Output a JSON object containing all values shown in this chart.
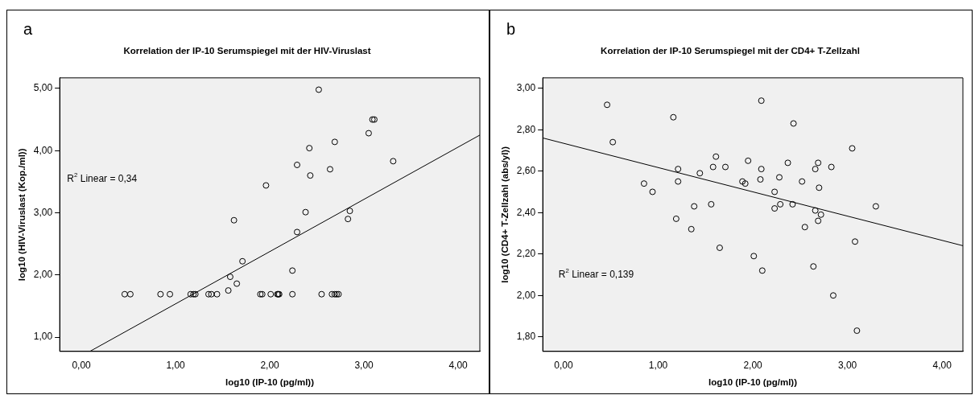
{
  "chart_data": [
    {
      "type": "scatter",
      "title": "Korrelation der IP-10 Serumspiegel mit der HIV-Viruslast",
      "xlabel": "log10 (IP-10 (pg/ml))",
      "ylabel": "log10 (HIV-Viruslast (Kop./ml))",
      "annotations": [
        "a",
        "R$^{2}$ Linear = 0,34"
      ],
      "xlim": [
        -0.23,
        4.23
      ],
      "ylim": [
        0.77,
        5.17
      ],
      "xticks": [
        {
          "value": 0,
          "label": "0,00"
        },
        {
          "value": 1,
          "label": "1,00"
        },
        {
          "value": 2,
          "label": "2,00"
        },
        {
          "value": 3,
          "label": "3,00"
        },
        {
          "value": 4,
          "label": "4,00"
        }
      ],
      "yticks": [
        {
          "value": 1,
          "label": "1,00"
        },
        {
          "value": 2,
          "label": "2,00"
        },
        {
          "value": 3,
          "label": "3,00"
        },
        {
          "value": 4,
          "label": "4,00"
        },
        {
          "value": 5,
          "label": "5,00"
        }
      ],
      "grid": false,
      "legend": false,
      "marker": "circle",
      "series": [
        {
          "color": "#000000",
          "x": [
            0.46,
            0.52,
            0.84,
            0.94,
            1.16,
            1.19,
            1.21,
            1.35,
            1.38,
            1.44,
            1.9,
            1.92,
            2.01,
            2.08,
            2.09,
            2.1,
            2.24,
            2.55,
            2.66,
            2.69,
            2.71,
            2.73,
            2.52,
            3.09,
            3.11,
            3.05,
            2.69,
            2.42,
            3.31,
            2.29,
            2.64,
            2.43,
            1.96,
            2.38,
            2.85,
            2.83,
            1.62,
            2.29,
            1.71,
            2.24,
            1.58,
            1.65,
            1.56
          ],
          "values": [
            1.69,
            1.69,
            1.69,
            1.69,
            1.69,
            1.69,
            1.69,
            1.69,
            1.69,
            1.69,
            1.69,
            1.69,
            1.69,
            1.69,
            1.69,
            1.69,
            1.69,
            1.69,
            1.69,
            1.69,
            1.69,
            1.69,
            4.98,
            4.5,
            4.5,
            4.28,
            4.14,
            4.04,
            3.83,
            3.77,
            3.7,
            3.6,
            3.44,
            3.01,
            3.03,
            2.9,
            2.88,
            2.69,
            2.22,
            2.07,
            1.97,
            1.86,
            1.75
          ]
        },
        {
          "type": "line",
          "color": "#000000",
          "marker": "none",
          "line_style": "solid",
          "x": [
            0.09,
            4.23
          ],
          "values": [
            0.77,
            4.25
          ]
        }
      ]
    },
    {
      "type": "scatter",
      "title": "Korrelation der IP-10 Serumspiegel mit der CD4+ T-Zellzahl",
      "xlabel": "log10 (IP-10 (pg/ml))",
      "ylabel": "log10 (CD4+ T-Zellzahl (abs/yl))",
      "annotations": [
        "b",
        "R$^{2}$ Linear = 0,139"
      ],
      "xlim": [
        -0.22,
        4.22
      ],
      "ylim": [
        1.73,
        3.05
      ],
      "xticks": [
        {
          "value": 0,
          "label": "0,00"
        },
        {
          "value": 1,
          "label": "1,00"
        },
        {
          "value": 2,
          "label": "2,00"
        },
        {
          "value": 3,
          "label": "3,00"
        },
        {
          "value": 4,
          "label": "4,00"
        }
      ],
      "yticks": [
        {
          "value": 1.8,
          "label": "1,80"
        },
        {
          "value": 2,
          "label": "2,00"
        },
        {
          "value": 2.2,
          "label": "2,20"
        },
        {
          "value": 2.4,
          "label": "2,40"
        },
        {
          "value": 2.6,
          "label": "2,60"
        },
        {
          "value": 2.8,
          "label": "2,80"
        },
        {
          "value": 3,
          "label": "3,00"
        }
      ],
      "grid": false,
      "legend": false,
      "marker": "circle",
      "series": [
        {
          "color": "#000000",
          "x": [
            0.46,
            0.52,
            1.16,
            2.09,
            2.43,
            3.05,
            1.61,
            1.95,
            2.37,
            2.69,
            1.21,
            1.58,
            1.71,
            2.09,
            2.66,
            2.83,
            1.44,
            2.08,
            2.28,
            1.89,
            1.92,
            2.52,
            1.21,
            0.85,
            0.94,
            2.7,
            2.23,
            1.56,
            2.29,
            2.42,
            1.38,
            2.23,
            3.3,
            2.66,
            2.72,
            2.69,
            2.55,
            1.19,
            1.35,
            1.65,
            3.08,
            2.01,
            2.1,
            2.64,
            2.85,
            3.1
          ],
          "values": [
            2.92,
            2.74,
            2.86,
            2.94,
            2.83,
            2.71,
            2.67,
            2.65,
            2.64,
            2.64,
            2.61,
            2.62,
            2.62,
            2.61,
            2.61,
            2.62,
            2.59,
            2.56,
            2.57,
            2.55,
            2.54,
            2.55,
            2.55,
            2.54,
            2.5,
            2.52,
            2.5,
            2.44,
            2.44,
            2.44,
            2.43,
            2.42,
            2.43,
            2.41,
            2.39,
            2.36,
            2.33,
            2.37,
            2.32,
            2.23,
            2.26,
            2.19,
            2.12,
            2.14,
            2,
            1.83
          ]
        },
        {
          "type": "line",
          "color": "#000000",
          "marker": "none",
          "line_style": "solid",
          "x": [
            -0.22,
            4.22
          ],
          "values": [
            2.76,
            2.24
          ]
        }
      ]
    }
  ]
}
